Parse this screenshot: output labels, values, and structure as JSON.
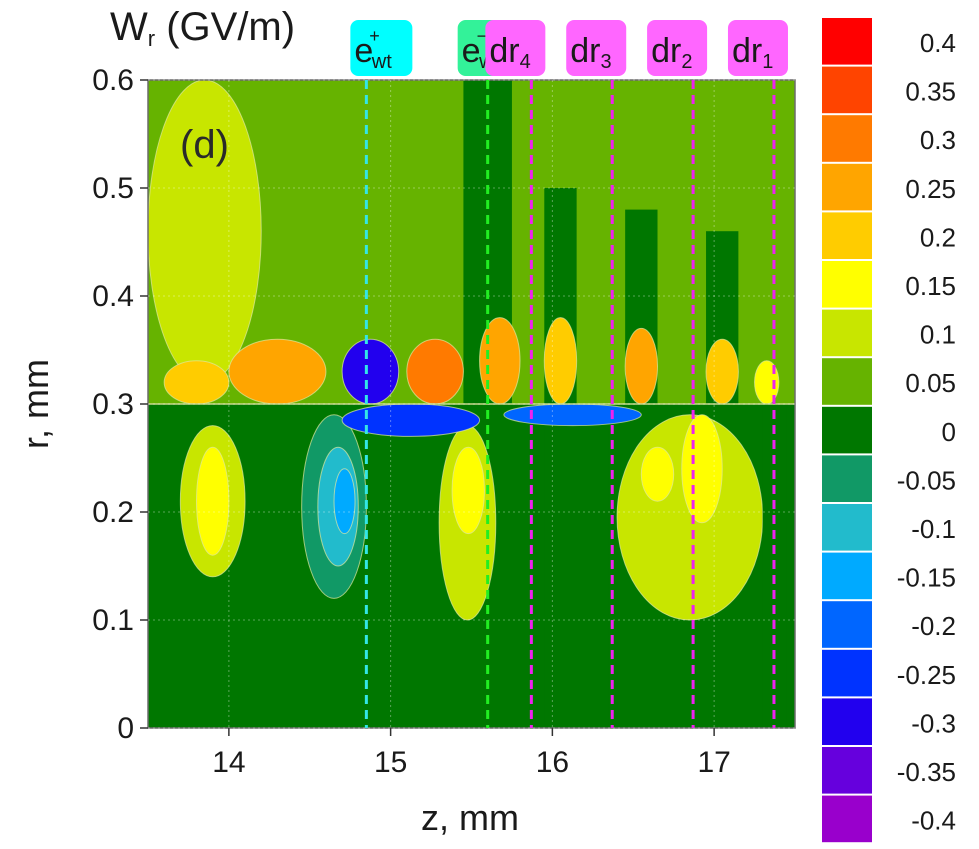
{
  "chart_data": {
    "type": "heatmap",
    "title_main": "W",
    "title_sub": "r",
    "title_units": " (GV/m)",
    "panel_label": "(d)",
    "xlabel": "z, mm",
    "ylabel": "r, mm",
    "xlim": [
      13.5,
      17.5
    ],
    "ylim": [
      0,
      0.6
    ],
    "x_ticks": [
      {
        "value": 14,
        "label": "14"
      },
      {
        "value": 15,
        "label": "15"
      },
      {
        "value": 16,
        "label": "16"
      },
      {
        "value": 17,
        "label": "17"
      }
    ],
    "y_ticks": [
      {
        "value": 0,
        "label": "0"
      },
      {
        "value": 0.1,
        "label": "0.1"
      },
      {
        "value": 0.2,
        "label": "0.2"
      },
      {
        "value": 0.3,
        "label": "0.3"
      },
      {
        "value": 0.4,
        "label": "0.4"
      },
      {
        "value": 0.5,
        "label": "0.5"
      },
      {
        "value": 0.6,
        "label": "0.6"
      }
    ],
    "colorbar": [
      {
        "value": 0.4,
        "label": "0.4",
        "color": "#ff0000"
      },
      {
        "value": 0.35,
        "label": "0.35",
        "color": "#ff4400"
      },
      {
        "value": 0.3,
        "label": "0.3",
        "color": "#ff7a00"
      },
      {
        "value": 0.25,
        "label": "0.25",
        "color": "#ffa500"
      },
      {
        "value": 0.2,
        "label": "0.2",
        "color": "#ffcc00"
      },
      {
        "value": 0.15,
        "label": "0.15",
        "color": "#ffff00"
      },
      {
        "value": 0.1,
        "label": "0.1",
        "color": "#c8e600"
      },
      {
        "value": 0.05,
        "label": "0.05",
        "color": "#66b300"
      },
      {
        "value": 0,
        "label": "0",
        "color": "#007700"
      },
      {
        "value": -0.05,
        "label": "-0.05",
        "color": "#119966"
      },
      {
        "value": -0.1,
        "label": "-0.1",
        "color": "#22bbcc"
      },
      {
        "value": -0.15,
        "label": "-0.15",
        "color": "#00aaff"
      },
      {
        "value": -0.2,
        "label": "-0.2",
        "color": "#0066ff"
      },
      {
        "value": -0.25,
        "label": "-0.25",
        "color": "#0033ff"
      },
      {
        "value": -0.3,
        "label": "-0.3",
        "color": "#2200ee"
      },
      {
        "value": -0.35,
        "label": "-0.35",
        "color": "#6600dd"
      },
      {
        "value": -0.4,
        "label": "-0.4",
        "color": "#9900cc"
      }
    ],
    "markers": [
      {
        "z": 14.85,
        "name": "e-plus-wt",
        "main": "e",
        "sup": "+",
        "sub": "wt",
        "box_color": "#00ffff",
        "line_color": "#33e6e6"
      },
      {
        "z": 15.6,
        "name": "e-minus-wt",
        "main": "e",
        "sup": "−",
        "sub": "wt",
        "box_color": "#33f299",
        "line_color": "#22ee22"
      },
      {
        "z": 15.87,
        "name": "dr4",
        "main": "dr",
        "sup": "",
        "sub": "4",
        "box_color": "#ff66ff",
        "line_color": "#ee22ee"
      },
      {
        "z": 16.37,
        "name": "dr3",
        "main": "dr",
        "sup": "",
        "sub": "3",
        "box_color": "#ff66ff",
        "line_color": "#ee22ee"
      },
      {
        "z": 16.87,
        "name": "dr2",
        "main": "dr",
        "sup": "",
        "sub": "2",
        "box_color": "#ff66ff",
        "line_color": "#ee22ee"
      },
      {
        "z": 17.37,
        "name": "dr1",
        "main": "dr",
        "sup": "",
        "sub": "1",
        "box_color": "#ff66ff",
        "line_color": "#ee22ee"
      }
    ],
    "regions": [
      {
        "name": "background-upper",
        "z": [
          13.5,
          17.5
        ],
        "r": [
          0.3,
          0.6
        ],
        "value": 0.05
      },
      {
        "name": "background-lower",
        "z": [
          13.5,
          17.5
        ],
        "r": [
          0.0,
          0.3
        ],
        "value": 0.0
      },
      {
        "name": "upper-left-halo",
        "z": [
          13.5,
          14.2
        ],
        "r": [
          0.32,
          0.6
        ],
        "value": 0.1
      },
      {
        "name": "lobe-lower-1",
        "z": [
          13.7,
          14.1
        ],
        "r": [
          0.14,
          0.28
        ],
        "value": 0.1
      },
      {
        "name": "lobe-lower-1-core",
        "z": [
          13.8,
          14.0
        ],
        "r": [
          0.16,
          0.26
        ],
        "value": 0.15
      },
      {
        "name": "lobe-lower-2",
        "z": [
          14.45,
          14.85
        ],
        "r": [
          0.12,
          0.29
        ],
        "value": -0.05
      },
      {
        "name": "lobe-lower-2-core",
        "z": [
          14.55,
          14.8
        ],
        "r": [
          0.15,
          0.26
        ],
        "value": -0.1
      },
      {
        "name": "lobe-lower-2-inner",
        "z": [
          14.65,
          14.78
        ],
        "r": [
          0.18,
          0.24
        ],
        "value": -0.15
      },
      {
        "name": "lobe-lower-3",
        "z": [
          15.3,
          15.65
        ],
        "r": [
          0.1,
          0.28
        ],
        "value": 0.1
      },
      {
        "name": "lobe-lower-3-core",
        "z": [
          15.38,
          15.58
        ],
        "r": [
          0.18,
          0.26
        ],
        "value": 0.15
      },
      {
        "name": "lobe-lower-4",
        "z": [
          16.4,
          17.3
        ],
        "r": [
          0.1,
          0.29
        ],
        "value": 0.1
      },
      {
        "name": "lobe-lower-4-core-a",
        "z": [
          16.55,
          16.75
        ],
        "r": [
          0.21,
          0.26
        ],
        "value": 0.15
      },
      {
        "name": "lobe-lower-4-core-b",
        "z": [
          16.8,
          17.05
        ],
        "r": [
          0.19,
          0.29
        ],
        "value": 0.15
      },
      {
        "name": "column-upper-1",
        "z": [
          15.45,
          15.75
        ],
        "r": [
          0.3,
          0.6
        ],
        "value": 0.0
      },
      {
        "name": "column-upper-2",
        "z": [
          15.95,
          16.15
        ],
        "r": [
          0.3,
          0.5
        ],
        "value": 0.0
      },
      {
        "name": "column-upper-3",
        "z": [
          16.45,
          16.65
        ],
        "r": [
          0.3,
          0.48
        ],
        "value": 0.0
      },
      {
        "name": "column-upper-4",
        "z": [
          16.95,
          17.15
        ],
        "r": [
          0.3,
          0.46
        ],
        "value": 0.0
      },
      {
        "name": "column-lower-1",
        "z": [
          15.75,
          15.95
        ],
        "r": [
          0.0,
          0.3
        ],
        "value": 0.0
      },
      {
        "name": "column-lower-2",
        "z": [
          16.1,
          16.35
        ],
        "r": [
          0.0,
          0.3
        ],
        "value": 0.0
      },
      {
        "name": "column-lower-3",
        "z": [
          17.3,
          17.45
        ],
        "r": [
          0.0,
          0.3
        ],
        "value": 0.0
      },
      {
        "name": "wedge-upper-1",
        "z": [
          15.55,
          15.8
        ],
        "r": [
          0.3,
          0.38
        ],
        "value": 0.25
      },
      {
        "name": "wedge-upper-2",
        "z": [
          15.95,
          16.15
        ],
        "r": [
          0.3,
          0.38
        ],
        "value": 0.2
      },
      {
        "name": "wedge-upper-3",
        "z": [
          16.45,
          16.65
        ],
        "r": [
          0.3,
          0.37
        ],
        "value": 0.25
      },
      {
        "name": "wedge-upper-4",
        "z": [
          16.95,
          17.15
        ],
        "r": [
          0.3,
          0.36
        ],
        "value": 0.2
      },
      {
        "name": "wedge-upper-5",
        "z": [
          17.25,
          17.4
        ],
        "r": [
          0.3,
          0.34
        ],
        "value": 0.15
      },
      {
        "name": "wedge-upper-6",
        "z": [
          15.1,
          15.45
        ],
        "r": [
          0.3,
          0.36
        ],
        "value": 0.3
      },
      {
        "name": "wedge-upper-7",
        "z": [
          14.0,
          14.6
        ],
        "r": [
          0.3,
          0.36
        ],
        "value": 0.25
      },
      {
        "name": "wedge-upper-8",
        "z": [
          13.6,
          14.0
        ],
        "r": [
          0.3,
          0.34
        ],
        "value": 0.2
      },
      {
        "name": "wedge-upper-9",
        "z": [
          14.7,
          15.05
        ],
        "r": [
          0.3,
          0.36
        ],
        "value": -0.3
      },
      {
        "name": "band-lower-1",
        "z": [
          14.7,
          15.55
        ],
        "r": [
          0.27,
          0.3
        ],
        "value": -0.25
      },
      {
        "name": "band-lower-2",
        "z": [
          15.7,
          16.55
        ],
        "r": [
          0.28,
          0.3
        ],
        "value": -0.2
      }
    ]
  }
}
